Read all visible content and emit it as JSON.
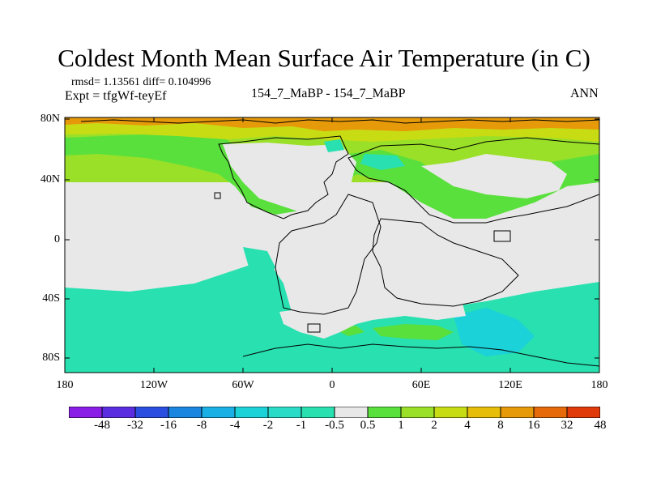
{
  "title": "Coldest Month Mean Surface Air Temperature (in C)",
  "stats": {
    "text": "rmsd= 1.13561 diff= 0.104996"
  },
  "experiment": {
    "text": "Expt = tfgWf-teyEf"
  },
  "cases": {
    "text": "154_7_MaBP - 154_7_MaBP"
  },
  "season": {
    "text": "ANN"
  },
  "axes": {
    "y_ticks": [
      "80N",
      "40N",
      "0",
      "40S",
      "80S"
    ],
    "x_ticks": [
      "180",
      "120W",
      "60W",
      "0",
      "60E",
      "120E",
      "180"
    ]
  },
  "colorbar": {
    "labels": [
      "-48",
      "-32",
      "-16",
      "-8",
      "-4",
      "-2",
      "-1",
      "-0.5",
      "0.5",
      "1",
      "2",
      "4",
      "8",
      "16",
      "32",
      "48"
    ],
    "colors": [
      "#8a1ee6",
      "#5a2ee0",
      "#2a4ee0",
      "#1a86e0",
      "#1ab0e6",
      "#1ad2d8",
      "#2adcc8",
      "#28e0b0",
      "#e8e8e8",
      "#5ae03c",
      "#9ae028",
      "#c8dc14",
      "#e6be0a",
      "#e69a0a",
      "#e66a0a",
      "#e03a0a"
    ]
  },
  "palette": {
    "neutral": "#e8e8e8",
    "cool": "#28e0b0",
    "cool_dark": "#1ad2d8",
    "green": "#5ae03c",
    "yellowgreen": "#9ae028",
    "yellow": "#c8dc14",
    "orange": "#e69a0a"
  }
}
